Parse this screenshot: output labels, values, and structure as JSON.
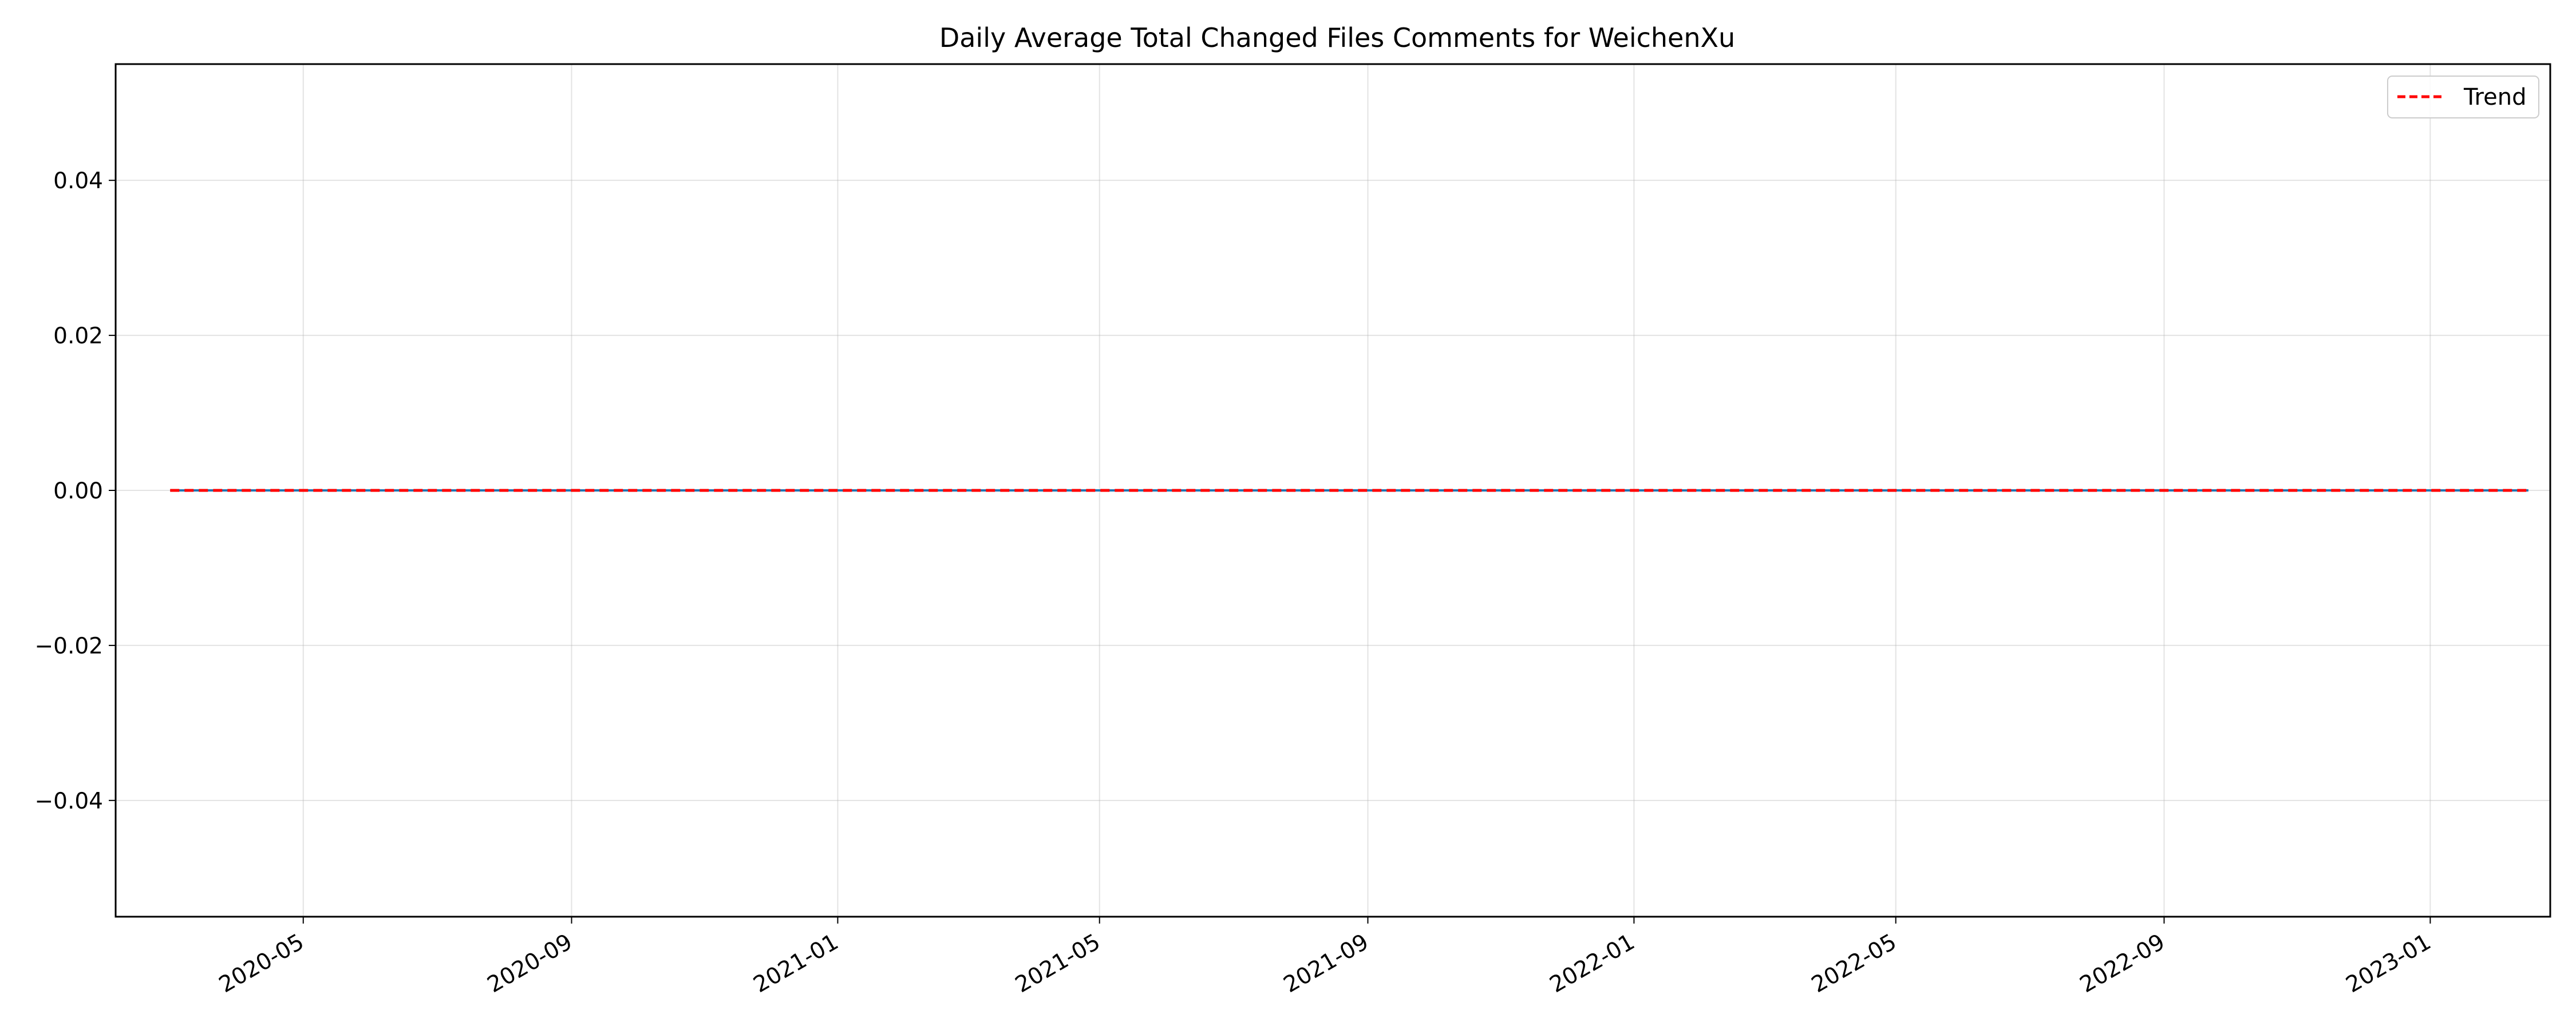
{
  "chart_data": {
    "type": "line",
    "title": "Daily Average Total Changed Files Comments for WeichenXu",
    "xlabel": "",
    "ylabel": "",
    "x_axis_type": "date",
    "xlim": [
      "2020-02-05",
      "2023-02-25"
    ],
    "ylim": [
      -0.055,
      0.055
    ],
    "x_ticks": [
      "2020-05-01",
      "2020-09-01",
      "2021-01-01",
      "2021-05-01",
      "2021-09-01",
      "2022-01-01",
      "2022-05-01",
      "2022-09-01",
      "2023-01-01"
    ],
    "x_tick_labels": [
      "2020-05",
      "2020-09",
      "2021-01",
      "2021-05",
      "2021-09",
      "2022-01",
      "2022-05",
      "2022-09",
      "2023-01"
    ],
    "y_ticks": [
      0.04,
      0.02,
      0.0,
      -0.02,
      -0.04
    ],
    "y_tick_labels": [
      "0.04",
      "0.02",
      "0.00",
      "−0.02",
      "−0.04"
    ],
    "grid": true,
    "legend_position": "top-right",
    "series": [
      {
        "style": "solid",
        "color": "#1f77b4",
        "x": [
          "2020-03-01",
          "2020-03-10",
          "2020-03-20",
          "2020-04-01",
          "2020-04-15",
          "2020-06-01",
          "2020-09-01",
          "2021-01-01",
          "2021-05-01",
          "2021-09-01",
          "2022-01-01",
          "2022-05-01",
          "2022-09-01",
          "2023-01-01",
          "2023-02-15"
        ],
        "y": [
          0,
          0,
          0,
          0,
          0,
          0,
          0,
          0,
          0,
          0,
          0,
          0,
          0,
          0,
          0
        ]
      },
      {
        "name": "Trend",
        "style": "dashed",
        "color": "#ff0000",
        "x": [
          "2020-03-01",
          "2023-02-15"
        ],
        "y": [
          0,
          0
        ]
      }
    ]
  }
}
